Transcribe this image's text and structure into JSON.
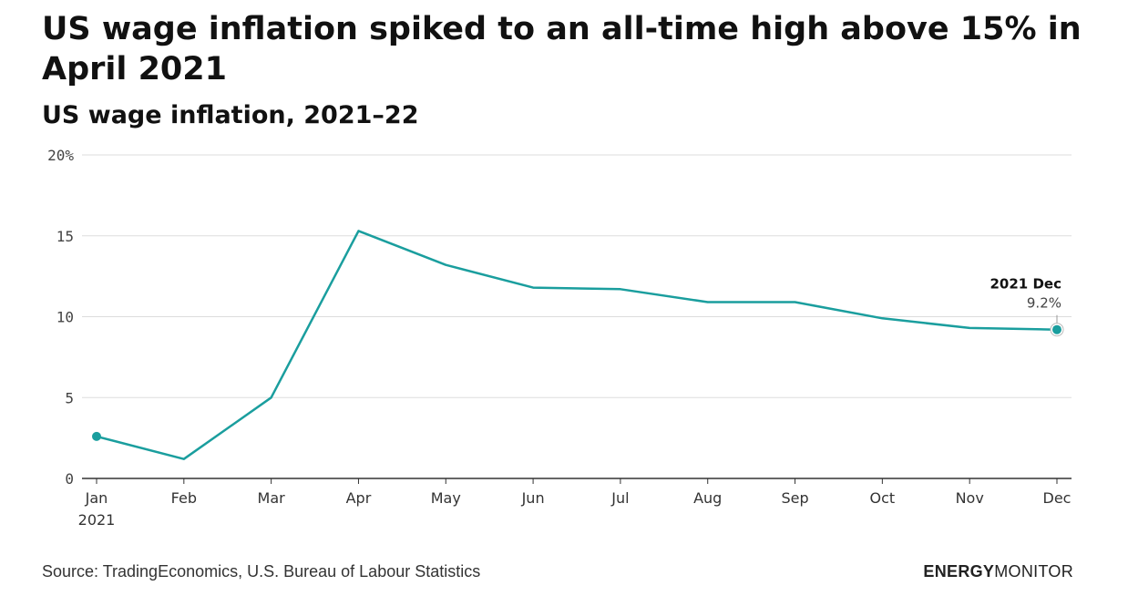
{
  "title": "US wage inflation spiked to an all-time high above 15% in April 2021",
  "subtitle": "US wage inflation, 2021–22",
  "source": "Source: TradingEconomics, U.S. Bureau of Labour Statistics",
  "brand": {
    "part1": "ENERGY",
    "part2": "MONITOR"
  },
  "colors": {
    "line": "#1a9e9e",
    "grid": "#dddddd",
    "axis": "#333333"
  },
  "chart_data": {
    "type": "line",
    "categories": [
      "Jan",
      "Feb",
      "Mar",
      "Apr",
      "May",
      "Jun",
      "Jul",
      "Aug",
      "Sep",
      "Oct",
      "Nov",
      "Dec"
    ],
    "year_label": "2021",
    "series": [
      {
        "values": [
          2.6,
          1.2,
          5.0,
          15.3,
          13.2,
          11.8,
          11.7,
          10.9,
          10.9,
          9.9,
          9.3,
          9.2
        ]
      }
    ],
    "ylim": [
      0,
      20
    ],
    "yticks": [
      0,
      5,
      10,
      15,
      20
    ],
    "ytick_labels": [
      "0",
      "5",
      "10",
      "15",
      "20%"
    ],
    "grid": true,
    "annotation": {
      "title": "2021 Dec",
      "value": "9.2%"
    }
  }
}
